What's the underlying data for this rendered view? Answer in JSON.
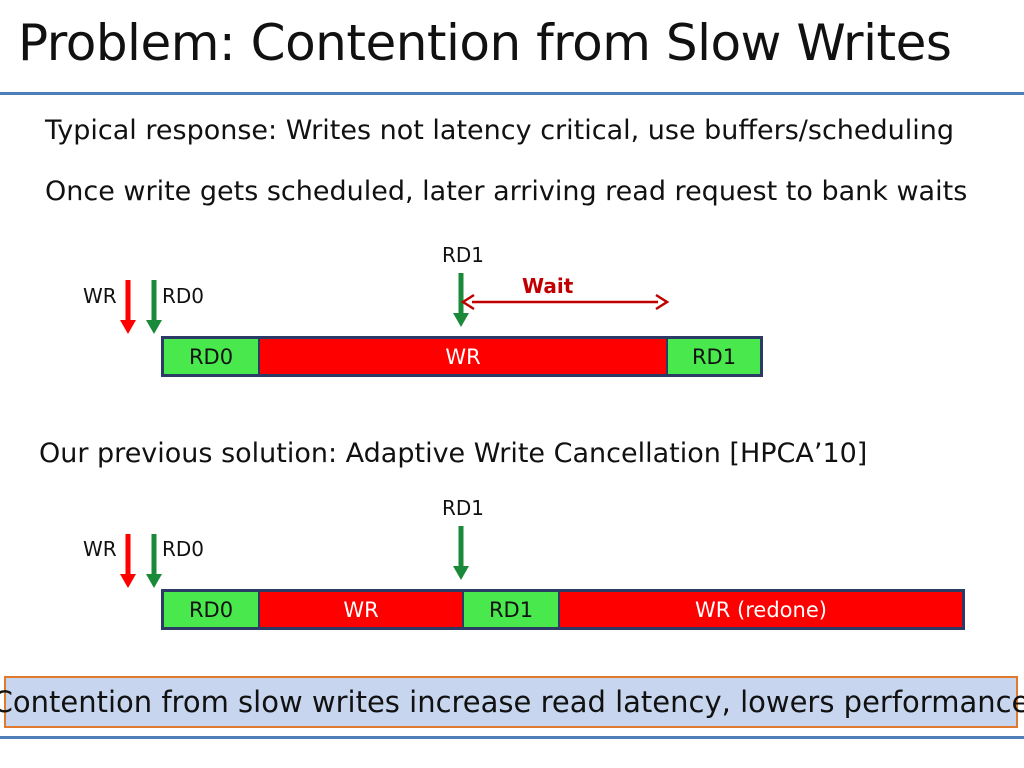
{
  "slide": {
    "title": "Problem: Contention from Slow Writes",
    "line1": "Typical response:  Writes not latency critical, use buffers/scheduling",
    "line2": "Once write gets scheduled, later arriving read request to bank waits",
    "line3": "Our previous solution: Adaptive Write Cancellation [HPCA’10]",
    "conclusion": "Contention from slow writes increase read latency, lowers performance"
  },
  "diagram1": {
    "arrow_labels": {
      "wr": "WR",
      "rd0": "RD0",
      "rd1": "RD1"
    },
    "wait_label": "Wait",
    "segments": [
      {
        "label": "RD0",
        "kind": "read"
      },
      {
        "label": "WR",
        "kind": "write"
      },
      {
        "label": "RD1",
        "kind": "read"
      }
    ]
  },
  "diagram2": {
    "arrow_labels": {
      "wr": "WR",
      "rd0": "RD0",
      "rd1": "RD1"
    },
    "segments": [
      {
        "label": "RD0",
        "kind": "read"
      },
      {
        "label": "WR",
        "kind": "write"
      },
      {
        "label": "RD1",
        "kind": "read"
      },
      {
        "label": "WR (redone)",
        "kind": "write"
      }
    ]
  },
  "colors": {
    "read": "#49e84d",
    "write": "#ff0000",
    "wr_arrow": "#ff0000",
    "rd_arrow": "#1a8a3a",
    "wait": "#c00000",
    "accent_rule": "#4f7fb8",
    "box_fill": "#c7d6ee",
    "box_border": "#e07a2e"
  }
}
